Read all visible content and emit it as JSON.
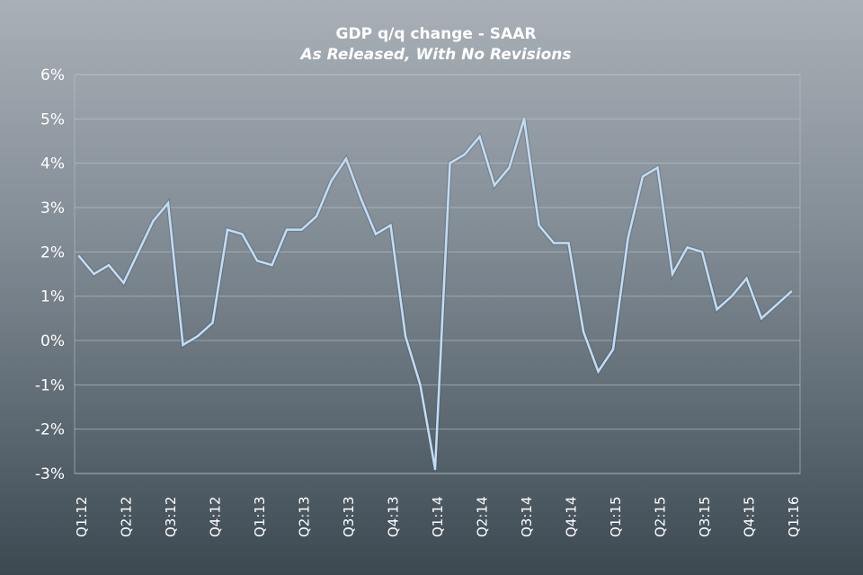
{
  "chart_data": {
    "type": "line",
    "title": "GDP q/q change - SAAR",
    "subtitle": "As Released, With No Revisions",
    "xlabel": "",
    "ylabel": "",
    "ylim": [
      -3,
      6
    ],
    "y_ticks": [
      "-3%",
      "-2%",
      "-1%",
      "0%",
      "1%",
      "2%",
      "3%",
      "4%",
      "5%",
      "6%"
    ],
    "x_tick_labels": [
      "Q1:12",
      "Q2:12",
      "Q3:12",
      "Q4:12",
      "Q1:13",
      "Q2:13",
      "Q3:13",
      "Q4:13",
      "Q1:14",
      "Q2:14",
      "Q3:14",
      "Q4:14",
      "Q1:15",
      "Q2:15",
      "Q3:15",
      "Q4:15",
      "Q1:16"
    ],
    "points_per_tick": 3,
    "grid": true,
    "series": [
      {
        "name": "GDP q/q change",
        "color": "#c4dcf2",
        "values": [
          1.9,
          1.5,
          1.7,
          1.3,
          2.0,
          2.7,
          3.1,
          -0.1,
          0.1,
          0.4,
          2.5,
          2.4,
          1.8,
          1.7,
          2.5,
          2.5,
          2.8,
          3.6,
          4.1,
          3.2,
          2.4,
          2.6,
          0.1,
          -1.0,
          -2.9,
          4.0,
          4.2,
          4.6,
          3.5,
          3.9,
          5.0,
          2.6,
          2.2,
          2.2,
          0.2,
          -0.7,
          -0.2,
          2.3,
          3.7,
          3.9,
          1.5,
          2.1,
          2.0,
          0.7,
          1.0,
          1.4,
          0.5,
          0.8,
          1.1
        ]
      }
    ]
  }
}
